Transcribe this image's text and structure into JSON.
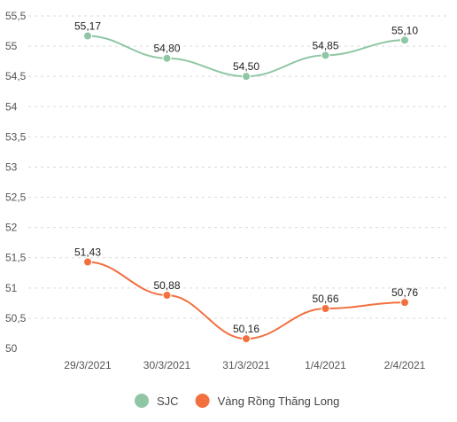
{
  "chart_data": {
    "type": "line",
    "title": "",
    "xlabel": "",
    "ylabel": "",
    "categories": [
      "29/3/2021",
      "30/3/2021",
      "31/3/2021",
      "1/4/2021",
      "2/4/2021"
    ],
    "ylim": [
      50,
      55.5
    ],
    "yticks": [
      "50",
      "50,5",
      "51",
      "51,5",
      "52",
      "52,5",
      "53",
      "53,5",
      "54",
      "54,5",
      "55",
      "55,5"
    ],
    "grid": "horizontal dashed",
    "legend_position": "bottom",
    "series": [
      {
        "name": "SJC",
        "color": "#8fc6a4",
        "values": [
          55.17,
          54.8,
          54.5,
          54.85,
          55.1
        ],
        "labels": [
          "55,17",
          "54,80",
          "54,50",
          "54,85",
          "55,10"
        ]
      },
      {
        "name": "Vàng Rồng Thăng Long",
        "color": "#f2703f",
        "values": [
          51.43,
          50.88,
          50.16,
          50.66,
          50.76
        ],
        "labels": [
          "51,43",
          "50,88",
          "50,16",
          "50,66",
          "50,76"
        ]
      }
    ]
  }
}
